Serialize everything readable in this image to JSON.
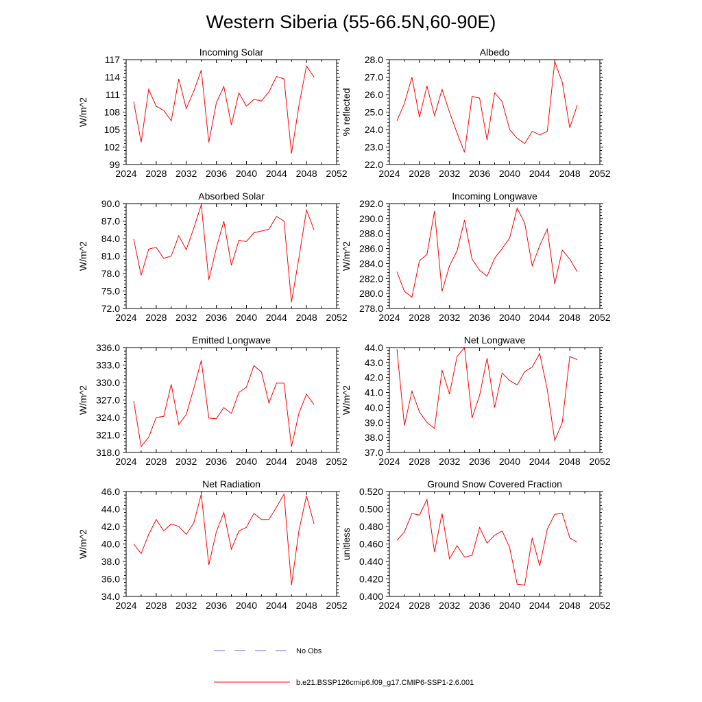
{
  "title": "Western Siberia (55-66.5N,60-90E)",
  "colors": {
    "series": "#ff0000",
    "obs": "#6a6ad8",
    "axis": "#000000"
  },
  "legend": [
    {
      "label": "No Obs",
      "style": "dashed",
      "color": "#6a6ad8"
    },
    {
      "label": "b.e21.BSSP126cmip6.f09_g17.CMIP6-SSP1-2.6.001",
      "style": "solid",
      "color": "#ff0000"
    }
  ],
  "chart_data": [
    {
      "type": "line",
      "title": "Incoming Solar",
      "ylabel": "W/m^2",
      "xlim": [
        2024,
        2052
      ],
      "xticks": [
        2024,
        2028,
        2032,
        2036,
        2040,
        2044,
        2048,
        2052
      ],
      "ylim": [
        99,
        117
      ],
      "yticks": [
        "99",
        "102",
        "105",
        "108",
        "111",
        "114",
        "117"
      ],
      "x": [
        2025,
        2026,
        2027,
        2028,
        2029,
        2030,
        2031,
        2032,
        2033,
        2034,
        2035,
        2036,
        2037,
        2038,
        2039,
        2040,
        2041,
        2042,
        2043,
        2044,
        2045,
        2046,
        2047,
        2048,
        2049
      ],
      "series": [
        {
          "values": [
            109.8,
            102.8,
            111.9,
            109.0,
            108.3,
            106.5,
            113.7,
            108.6,
            111.6,
            115.2,
            102.8,
            109.6,
            112.4,
            105.8,
            111.3,
            109.0,
            110.2,
            109.9,
            111.5,
            114.1,
            113.7,
            100.9,
            109.2,
            115.9,
            114.0
          ]
        }
      ]
    },
    {
      "type": "line",
      "title": "Albedo",
      "ylabel": "% reflected",
      "xlim": [
        2024,
        2052
      ],
      "xticks": [
        2024,
        2028,
        2032,
        2036,
        2040,
        2044,
        2048,
        2052
      ],
      "ylim": [
        22.0,
        28.0
      ],
      "yticks": [
        "22.0",
        "23.0",
        "24.0",
        "25.0",
        "26.0",
        "27.0",
        "28.0"
      ],
      "x": [
        2025,
        2026,
        2027,
        2028,
        2029,
        2030,
        2031,
        2032,
        2033,
        2034,
        2035,
        2036,
        2037,
        2038,
        2039,
        2040,
        2041,
        2042,
        2043,
        2044,
        2045,
        2046,
        2047,
        2048,
        2049
      ],
      "series": [
        {
          "values": [
            24.5,
            25.5,
            27.0,
            24.7,
            26.5,
            24.8,
            26.3,
            25.0,
            23.8,
            22.7,
            25.9,
            25.8,
            23.4,
            26.1,
            25.6,
            24.0,
            23.5,
            23.2,
            23.9,
            23.7,
            23.9,
            27.9,
            26.7,
            24.1,
            25.4
          ]
        }
      ]
    },
    {
      "type": "line",
      "title": "Absorbed Solar",
      "ylabel": "W/m^2",
      "xlim": [
        2024,
        2052
      ],
      "xticks": [
        2024,
        2028,
        2032,
        2036,
        2040,
        2044,
        2048,
        2052
      ],
      "ylim": [
        72.0,
        90.0
      ],
      "yticks": [
        "72.0",
        "75.0",
        "78.0",
        "81.0",
        "84.0",
        "87.0",
        "90.0"
      ],
      "x": [
        2025,
        2026,
        2027,
        2028,
        2029,
        2030,
        2031,
        2032,
        2033,
        2034,
        2035,
        2036,
        2037,
        2038,
        2039,
        2040,
        2041,
        2042,
        2043,
        2044,
        2045,
        2046,
        2047,
        2048,
        2049
      ],
      "series": [
        {
          "values": [
            83.9,
            77.7,
            82.2,
            82.5,
            80.6,
            81.0,
            84.5,
            82.1,
            85.8,
            89.8,
            76.9,
            82.4,
            87.0,
            79.4,
            83.7,
            83.5,
            85.0,
            85.3,
            85.6,
            87.8,
            87.0,
            73.1,
            80.8,
            88.9,
            85.5
          ]
        }
      ]
    },
    {
      "type": "line",
      "title": "Incoming Longwave",
      "ylabel": "W/m^2",
      "xlim": [
        2024,
        2052
      ],
      "xticks": [
        2024,
        2028,
        2032,
        2036,
        2040,
        2044,
        2048,
        2052
      ],
      "ylim": [
        278.0,
        292.0
      ],
      "yticks": [
        "278.0",
        "280.0",
        "282.0",
        "284.0",
        "286.0",
        "288.0",
        "290.0",
        "292.0"
      ],
      "x": [
        2025,
        2026,
        2027,
        2028,
        2029,
        2030,
        2031,
        2032,
        2033,
        2034,
        2035,
        2036,
        2037,
        2038,
        2039,
        2040,
        2041,
        2042,
        2043,
        2044,
        2045,
        2046,
        2047,
        2048,
        2049
      ],
      "series": [
        {
          "values": [
            282.9,
            280.3,
            279.5,
            284.4,
            285.2,
            291.0,
            280.3,
            283.7,
            285.7,
            289.8,
            284.6,
            283.1,
            282.3,
            284.7,
            286.0,
            287.4,
            291.4,
            289.4,
            283.7,
            286.4,
            288.6,
            281.3,
            285.8,
            284.6,
            282.9
          ]
        }
      ]
    },
    {
      "type": "line",
      "title": "Emitted Longwave",
      "ylabel": "W/m^2",
      "xlim": [
        2024,
        2052
      ],
      "xticks": [
        2024,
        2028,
        2032,
        2036,
        2040,
        2044,
        2048,
        2052
      ],
      "ylim": [
        318.0,
        336.0
      ],
      "yticks": [
        "318.0",
        "321.0",
        "324.0",
        "327.0",
        "330.0",
        "333.0",
        "336.0"
      ],
      "x": [
        2025,
        2026,
        2027,
        2028,
        2029,
        2030,
        2031,
        2032,
        2033,
        2034,
        2035,
        2036,
        2037,
        2038,
        2039,
        2040,
        2041,
        2042,
        2043,
        2044,
        2045,
        2046,
        2047,
        2048,
        2049
      ],
      "series": [
        {
          "values": [
            326.8,
            319.0,
            320.6,
            324.0,
            324.2,
            329.7,
            322.8,
            324.5,
            329.0,
            333.8,
            323.9,
            323.8,
            325.7,
            324.7,
            328.3,
            329.2,
            332.9,
            331.8,
            326.5,
            329.9,
            329.9,
            319.0,
            324.8,
            328.0,
            326.2
          ]
        }
      ]
    },
    {
      "type": "line",
      "title": "Net Longwave",
      "ylabel": "W/m^2",
      "xlim": [
        2024,
        2052
      ],
      "xticks": [
        2024,
        2028,
        2032,
        2036,
        2040,
        2044,
        2048,
        2052
      ],
      "ylim": [
        37.0,
        44.0
      ],
      "yticks": [
        "37.0",
        "38.0",
        "39.0",
        "40.0",
        "41.0",
        "42.0",
        "43.0",
        "44.0"
      ],
      "x": [
        2025,
        2026,
        2027,
        2028,
        2029,
        2030,
        2031,
        2032,
        2033,
        2034,
        2035,
        2036,
        2037,
        2038,
        2039,
        2040,
        2041,
        2042,
        2043,
        2044,
        2045,
        2046,
        2047,
        2048,
        2049
      ],
      "series": [
        {
          "values": [
            43.9,
            38.8,
            41.1,
            39.7,
            39.0,
            38.6,
            42.5,
            40.9,
            43.4,
            44.0,
            39.3,
            40.8,
            43.3,
            40.0,
            42.3,
            41.8,
            41.5,
            42.4,
            42.7,
            43.6,
            41.2,
            37.8,
            39.0,
            43.4,
            43.2
          ]
        }
      ]
    },
    {
      "type": "line",
      "title": "Net Radiation",
      "ylabel": "W/m^2",
      "xlim": [
        2024,
        2052
      ],
      "xticks": [
        2024,
        2028,
        2032,
        2036,
        2040,
        2044,
        2048,
        2052
      ],
      "ylim": [
        34.0,
        46.0
      ],
      "yticks": [
        "34.0",
        "36.0",
        "38.0",
        "40.0",
        "42.0",
        "44.0",
        "46.0"
      ],
      "x": [
        2025,
        2026,
        2027,
        2028,
        2029,
        2030,
        2031,
        2032,
        2033,
        2034,
        2035,
        2036,
        2037,
        2038,
        2039,
        2040,
        2041,
        2042,
        2043,
        2044,
        2045,
        2046,
        2047,
        2048,
        2049
      ],
      "series": [
        {
          "values": [
            40.0,
            38.9,
            41.1,
            42.8,
            41.5,
            42.3,
            42.0,
            41.1,
            42.4,
            45.7,
            37.6,
            41.4,
            43.6,
            39.4,
            41.5,
            41.9,
            43.5,
            42.8,
            42.8,
            44.2,
            45.7,
            35.3,
            41.6,
            45.5,
            42.3
          ]
        }
      ]
    },
    {
      "type": "line",
      "title": "Ground Snow Covered Fraction",
      "ylabel": "unitless",
      "xlim": [
        2024,
        2052
      ],
      "xticks": [
        2024,
        2028,
        2032,
        2036,
        2040,
        2044,
        2048,
        2052
      ],
      "ylim": [
        0.4,
        0.52
      ],
      "yticks": [
        "0.400",
        "0.420",
        "0.440",
        "0.460",
        "0.480",
        "0.500",
        "0.520"
      ],
      "x": [
        2025,
        2026,
        2027,
        2028,
        2029,
        2030,
        2031,
        2032,
        2033,
        2034,
        2035,
        2036,
        2037,
        2038,
        2039,
        2040,
        2041,
        2042,
        2043,
        2044,
        2045,
        2046,
        2047,
        2048,
        2049
      ],
      "series": [
        {
          "values": [
            0.464,
            0.474,
            0.495,
            0.493,
            0.511,
            0.451,
            0.495,
            0.443,
            0.458,
            0.445,
            0.447,
            0.479,
            0.461,
            0.47,
            0.475,
            0.456,
            0.414,
            0.413,
            0.467,
            0.435,
            0.477,
            0.494,
            0.495,
            0.467,
            0.462
          ]
        }
      ]
    }
  ]
}
